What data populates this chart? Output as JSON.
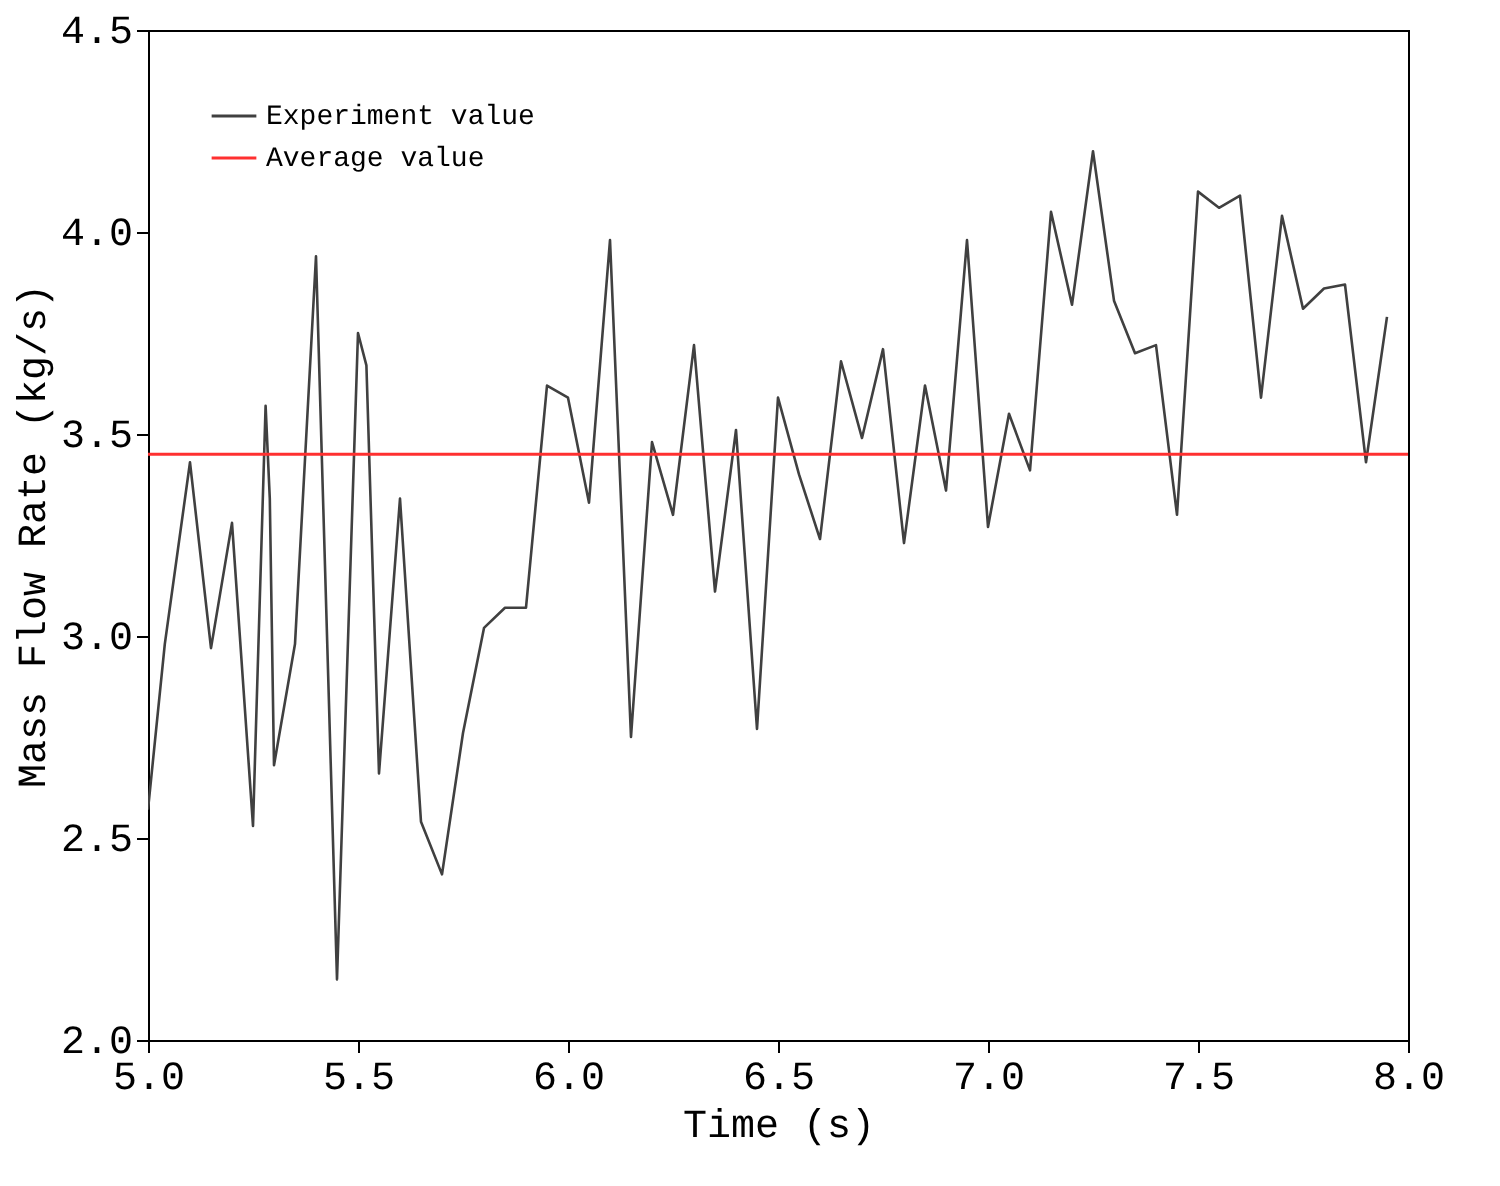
{
  "chart_data": {
    "type": "line",
    "xlabel": "Time (s)",
    "ylabel": "Mass Flow Rate (kg/s)",
    "series": [
      {
        "name": "Experiment value",
        "color": "#404040",
        "x": [
          5.0,
          5.04,
          5.1,
          5.15,
          5.2,
          5.25,
          5.28,
          5.29,
          5.3,
          5.35,
          5.4,
          5.45,
          5.5,
          5.52,
          5.55,
          5.6,
          5.65,
          5.7,
          5.75,
          5.8,
          5.85,
          5.9,
          5.95,
          6.0,
          6.05,
          6.1,
          6.15,
          6.2,
          6.25,
          6.3,
          6.35,
          6.4,
          6.45,
          6.5,
          6.55,
          6.6,
          6.65,
          6.7,
          6.75,
          6.8,
          6.85,
          6.9,
          6.95,
          7.0,
          7.05,
          7.1,
          7.15,
          7.2,
          7.25,
          7.3,
          7.35,
          7.4,
          7.45,
          7.5,
          7.55,
          7.6,
          7.65,
          7.7,
          7.75,
          7.8,
          7.85,
          7.9,
          7.95
        ],
        "values": [
          2.57,
          2.98,
          3.43,
          2.97,
          3.28,
          2.53,
          3.57,
          3.34,
          2.68,
          2.98,
          3.94,
          2.15,
          3.75,
          3.67,
          2.66,
          3.34,
          2.54,
          2.41,
          2.76,
          3.02,
          3.07,
          3.07,
          3.62,
          3.59,
          3.33,
          3.98,
          2.75,
          3.48,
          3.3,
          3.72,
          3.11,
          3.51,
          2.77,
          3.59,
          3.4,
          3.24,
          3.68,
          3.49,
          3.71,
          3.23,
          3.62,
          3.36,
          3.98,
          3.27,
          3.55,
          3.41,
          4.05,
          3.82,
          4.2,
          3.83,
          3.7,
          3.72,
          3.3,
          4.1,
          4.06,
          4.09,
          3.59,
          4.04,
          3.81,
          3.86,
          3.87,
          3.43,
          3.79
        ]
      }
    ],
    "ref_lines": [
      {
        "axis": "y",
        "value": 3.45,
        "label": "Average value",
        "color": "#ff3030"
      }
    ],
    "xlim": [
      5.0,
      8.0
    ],
    "ylim": [
      2.0,
      4.5
    ],
    "xticks": [
      {
        "value": 5.0,
        "label": "5.0"
      },
      {
        "value": 5.5,
        "label": "5.5"
      },
      {
        "value": 6.0,
        "label": "6.0"
      },
      {
        "value": 6.5,
        "label": "6.5"
      },
      {
        "value": 7.0,
        "label": "7.0"
      },
      {
        "value": 7.5,
        "label": "7.5"
      },
      {
        "value": 8.0,
        "label": "8.0"
      }
    ],
    "yticks": [
      {
        "value": 2.0,
        "label": "2.0"
      },
      {
        "value": 2.5,
        "label": "2.5"
      },
      {
        "value": 3.0,
        "label": "3.0"
      },
      {
        "value": 3.5,
        "label": "3.5"
      },
      {
        "value": 4.0,
        "label": "4.0"
      },
      {
        "value": 4.5,
        "label": "4.5"
      }
    ],
    "grid": false,
    "legend": "top left",
    "marker": "none",
    "line_style": "solid"
  }
}
